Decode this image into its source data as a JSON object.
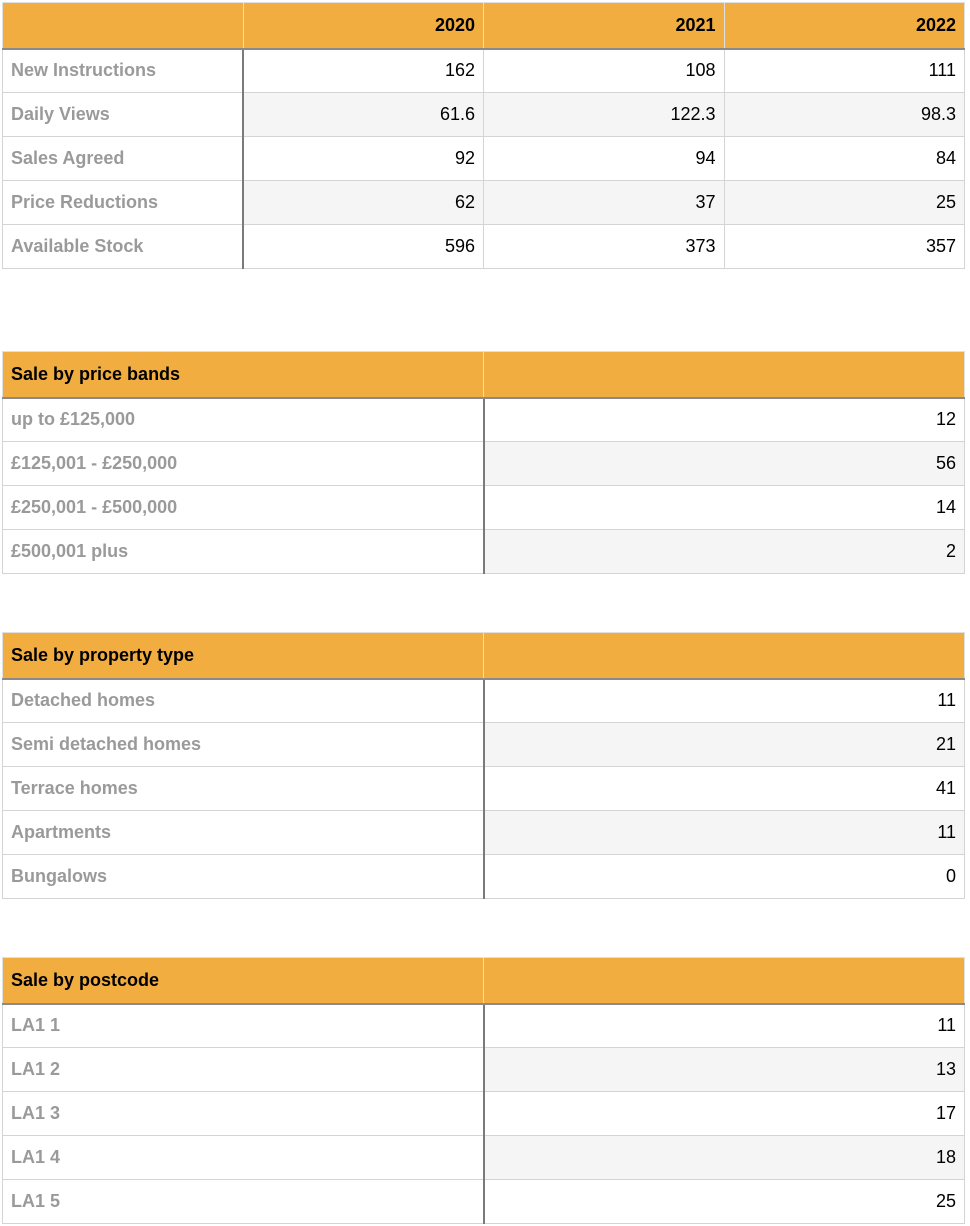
{
  "tables": [
    {
      "columns": [
        "2020",
        "2021",
        "2022"
      ],
      "rows": [
        {
          "label": "New Instructions",
          "values": [
            162,
            108,
            111
          ]
        },
        {
          "label": "Daily Views",
          "values": [
            61.6,
            122.3,
            98.3
          ]
        },
        {
          "label": "Sales Agreed",
          "values": [
            92,
            94,
            84
          ]
        },
        {
          "label": "Price Reductions",
          "values": [
            62,
            37,
            25
          ]
        },
        {
          "label": "Available Stock",
          "values": [
            596,
            373,
            357
          ]
        }
      ]
    },
    {
      "title": "Sale by price bands",
      "rows": [
        {
          "label": "up to £125,000",
          "value": 12
        },
        {
          "label": "£125,001 - £250,000",
          "value": 56
        },
        {
          "label": "£250,001 - £500,000",
          "value": 14
        },
        {
          "label": "£500,001 plus",
          "value": 2
        }
      ]
    },
    {
      "title": "Sale by property type",
      "rows": [
        {
          "label": "Detached homes",
          "value": 11
        },
        {
          "label": "Semi detached homes",
          "value": 21
        },
        {
          "label": "Terrace homes",
          "value": 41
        },
        {
          "label": "Apartments",
          "value": 11
        },
        {
          "label": "Bungalows",
          "value": 0
        }
      ]
    },
    {
      "title": "Sale by postcode",
      "rows": [
        {
          "label": "LA1 1",
          "value": 11
        },
        {
          "label": "LA1 2",
          "value": 13
        },
        {
          "label": "LA1 3",
          "value": 17
        },
        {
          "label": "LA1 4",
          "value": 18
        },
        {
          "label": "LA1 5",
          "value": 25
        }
      ]
    }
  ]
}
